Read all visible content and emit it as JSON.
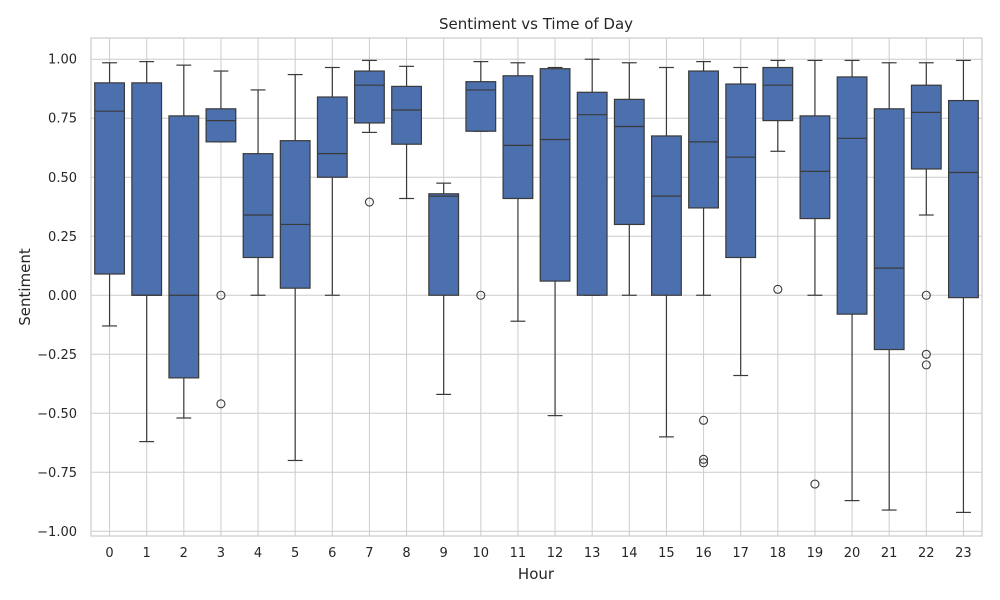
{
  "chart_data": {
    "type": "box",
    "title": "Sentiment vs Time of Day",
    "xlabel": "Hour",
    "ylabel": "Sentiment",
    "categories": [
      "0",
      "1",
      "2",
      "3",
      "4",
      "5",
      "6",
      "7",
      "8",
      "9",
      "10",
      "11",
      "12",
      "13",
      "14",
      "15",
      "16",
      "17",
      "18",
      "19",
      "20",
      "21",
      "22",
      "23"
    ],
    "ylim": [
      -1.02,
      1.09
    ],
    "yticks": [
      -1.0,
      -0.75,
      -0.5,
      -0.25,
      0.0,
      0.25,
      0.5,
      0.75,
      1.0
    ],
    "ytick_labels": [
      "−1.00",
      "−0.75",
      "−0.50",
      "−0.25",
      "0.00",
      "0.25",
      "0.50",
      "0.75",
      "1.00"
    ],
    "grid": true,
    "colors": {
      "box_fill": "#4C6FAE",
      "line": "#3A3A3A",
      "grid": "#CCCCCC",
      "frame": "#CCCCCC"
    },
    "boxes": [
      {
        "hour": "0",
        "whislo": -0.13,
        "q1": 0.09,
        "med": 0.78,
        "q3": 0.9,
        "whishi": 0.985,
        "fliers": []
      },
      {
        "hour": "1",
        "whislo": -0.62,
        "q1": 0.0,
        "med": 0.0,
        "q3": 0.9,
        "whishi": 0.99,
        "fliers": []
      },
      {
        "hour": "2",
        "whislo": -0.52,
        "q1": -0.35,
        "med": 0.0,
        "q3": 0.76,
        "whishi": 0.975,
        "fliers": []
      },
      {
        "hour": "3",
        "whislo": 0.65,
        "q1": 0.65,
        "med": 0.74,
        "q3": 0.79,
        "whishi": 0.95,
        "fliers": [
          0.0,
          -0.46
        ]
      },
      {
        "hour": "4",
        "whislo": 0.0,
        "q1": 0.16,
        "med": 0.34,
        "q3": 0.6,
        "whishi": 0.87,
        "fliers": []
      },
      {
        "hour": "5",
        "whislo": -0.7,
        "q1": 0.03,
        "med": 0.3,
        "q3": 0.655,
        "whishi": 0.935,
        "fliers": []
      },
      {
        "hour": "6",
        "whislo": 0.0,
        "q1": 0.5,
        "med": 0.6,
        "q3": 0.84,
        "whishi": 0.965,
        "fliers": []
      },
      {
        "hour": "7",
        "whislo": 0.69,
        "q1": 0.73,
        "med": 0.89,
        "q3": 0.95,
        "whishi": 0.995,
        "fliers": [
          0.395
        ]
      },
      {
        "hour": "8",
        "whislo": 0.41,
        "q1": 0.64,
        "med": 0.785,
        "q3": 0.885,
        "whishi": 0.97,
        "fliers": []
      },
      {
        "hour": "9",
        "whislo": -0.42,
        "q1": 0.0,
        "med": 0.42,
        "q3": 0.43,
        "whishi": 0.475,
        "fliers": []
      },
      {
        "hour": "10",
        "whislo": 0.695,
        "q1": 0.695,
        "med": 0.87,
        "q3": 0.905,
        "whishi": 0.99,
        "fliers": [
          0.0
        ]
      },
      {
        "hour": "11",
        "whislo": -0.11,
        "q1": 0.41,
        "med": 0.635,
        "q3": 0.93,
        "whishi": 0.985,
        "fliers": []
      },
      {
        "hour": "12",
        "whislo": -0.51,
        "q1": 0.06,
        "med": 0.66,
        "q3": 0.96,
        "whishi": 0.965,
        "fliers": []
      },
      {
        "hour": "13",
        "whislo": 0.0,
        "q1": 0.0,
        "med": 0.765,
        "q3": 0.86,
        "whishi": 1.0,
        "fliers": []
      },
      {
        "hour": "14",
        "whislo": 0.0,
        "q1": 0.3,
        "med": 0.715,
        "q3": 0.83,
        "whishi": 0.985,
        "fliers": []
      },
      {
        "hour": "15",
        "whislo": -0.6,
        "q1": 0.0,
        "med": 0.42,
        "q3": 0.675,
        "whishi": 0.965,
        "fliers": []
      },
      {
        "hour": "16",
        "whislo": 0.0,
        "q1": 0.37,
        "med": 0.65,
        "q3": 0.95,
        "whishi": 0.99,
        "fliers": [
          -0.53,
          -0.695,
          -0.71
        ]
      },
      {
        "hour": "17",
        "whislo": -0.34,
        "q1": 0.16,
        "med": 0.585,
        "q3": 0.895,
        "whishi": 0.965,
        "fliers": []
      },
      {
        "hour": "18",
        "whislo": 0.61,
        "q1": 0.74,
        "med": 0.89,
        "q3": 0.965,
        "whishi": 0.995,
        "fliers": [
          0.025
        ]
      },
      {
        "hour": "19",
        "whislo": 0.0,
        "q1": 0.325,
        "med": 0.525,
        "q3": 0.76,
        "whishi": 0.995,
        "fliers": [
          -0.8
        ]
      },
      {
        "hour": "20",
        "whislo": -0.87,
        "q1": -0.08,
        "med": 0.665,
        "q3": 0.925,
        "whishi": 0.995,
        "fliers": []
      },
      {
        "hour": "21",
        "whislo": -0.91,
        "q1": -0.23,
        "med": 0.115,
        "q3": 0.79,
        "whishi": 0.985,
        "fliers": []
      },
      {
        "hour": "22",
        "whislo": 0.34,
        "q1": 0.535,
        "med": 0.775,
        "q3": 0.89,
        "whishi": 0.985,
        "fliers": [
          0.0,
          -0.25,
          -0.295
        ]
      },
      {
        "hour": "23",
        "whislo": -0.92,
        "q1": -0.01,
        "med": 0.52,
        "q3": 0.825,
        "whishi": 0.995,
        "fliers": []
      }
    ]
  }
}
